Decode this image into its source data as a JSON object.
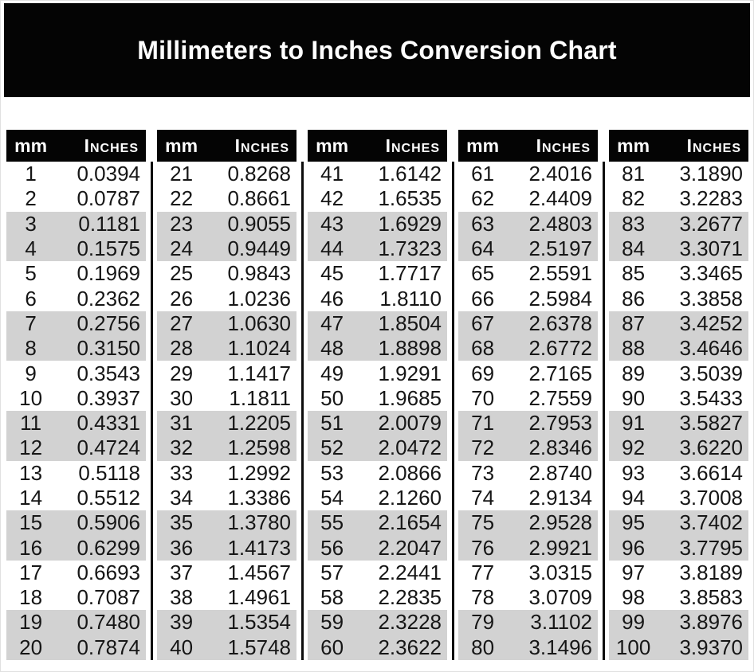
{
  "page": {
    "title": "Millimeters to Inches Conversion Chart"
  },
  "table_header": {
    "mm_label": "mm",
    "inches_label": "Inches"
  },
  "colors": {
    "banner_bg": "#040404",
    "header_bar_bg": "#040404",
    "header_text": "#ffffff",
    "alt_row_bg": "#d2d2d2",
    "separator": "#0d0d0d",
    "body_text": "#161616",
    "page_bg": "#ffffff"
  },
  "chart_data": {
    "type": "table",
    "title": "Millimeters to Inches Conversion Chart",
    "columns": [
      "mm",
      "Inches"
    ],
    "row_shading_pattern": "alternating pairs: rows 1-2 white, rows 3-4 gray, repeating",
    "tables": [
      {
        "mm_range": "1-20",
        "rows": [
          [
            1,
            "0.0394"
          ],
          [
            2,
            "0.0787"
          ],
          [
            3,
            "0.1181"
          ],
          [
            4,
            "0.1575"
          ],
          [
            5,
            "0.1969"
          ],
          [
            6,
            "0.2362"
          ],
          [
            7,
            "0.2756"
          ],
          [
            8,
            "0.3150"
          ],
          [
            9,
            "0.3543"
          ],
          [
            10,
            "0.3937"
          ],
          [
            11,
            "0.4331"
          ],
          [
            12,
            "0.4724"
          ],
          [
            13,
            "0.5118"
          ],
          [
            14,
            "0.5512"
          ],
          [
            15,
            "0.5906"
          ],
          [
            16,
            "0.6299"
          ],
          [
            17,
            "0.6693"
          ],
          [
            18,
            "0.7087"
          ],
          [
            19,
            "0.7480"
          ],
          [
            20,
            "0.7874"
          ]
        ]
      },
      {
        "mm_range": "21-40",
        "rows": [
          [
            21,
            "0.8268"
          ],
          [
            22,
            "0.8661"
          ],
          [
            23,
            "0.9055"
          ],
          [
            24,
            "0.9449"
          ],
          [
            25,
            "0.9843"
          ],
          [
            26,
            "1.0236"
          ],
          [
            27,
            "1.0630"
          ],
          [
            28,
            "1.1024"
          ],
          [
            29,
            "1.1417"
          ],
          [
            30,
            "1.1811"
          ],
          [
            31,
            "1.2205"
          ],
          [
            32,
            "1.2598"
          ],
          [
            33,
            "1.2992"
          ],
          [
            34,
            "1.3386"
          ],
          [
            35,
            "1.3780"
          ],
          [
            36,
            "1.4173"
          ],
          [
            37,
            "1.4567"
          ],
          [
            38,
            "1.4961"
          ],
          [
            39,
            "1.5354"
          ],
          [
            40,
            "1.5748"
          ]
        ]
      },
      {
        "mm_range": "41-60",
        "rows": [
          [
            41,
            "1.6142"
          ],
          [
            42,
            "1.6535"
          ],
          [
            43,
            "1.6929"
          ],
          [
            44,
            "1.7323"
          ],
          [
            45,
            "1.7717"
          ],
          [
            46,
            "1.8110"
          ],
          [
            47,
            "1.8504"
          ],
          [
            48,
            "1.8898"
          ],
          [
            49,
            "1.9291"
          ],
          [
            50,
            "1.9685"
          ],
          [
            51,
            "2.0079"
          ],
          [
            52,
            "2.0472"
          ],
          [
            53,
            "2.0866"
          ],
          [
            54,
            "2.1260"
          ],
          [
            55,
            "2.1654"
          ],
          [
            56,
            "2.2047"
          ],
          [
            57,
            "2.2441"
          ],
          [
            58,
            "2.2835"
          ],
          [
            59,
            "2.3228"
          ],
          [
            60,
            "2.3622"
          ]
        ]
      },
      {
        "mm_range": "61-80",
        "rows": [
          [
            61,
            "2.4016"
          ],
          [
            62,
            "2.4409"
          ],
          [
            63,
            "2.4803"
          ],
          [
            64,
            "2.5197"
          ],
          [
            65,
            "2.5591"
          ],
          [
            66,
            "2.5984"
          ],
          [
            67,
            "2.6378"
          ],
          [
            68,
            "2.6772"
          ],
          [
            69,
            "2.7165"
          ],
          [
            70,
            "2.7559"
          ],
          [
            71,
            "2.7953"
          ],
          [
            72,
            "2.8346"
          ],
          [
            73,
            "2.8740"
          ],
          [
            74,
            "2.9134"
          ],
          [
            75,
            "2.9528"
          ],
          [
            76,
            "2.9921"
          ],
          [
            77,
            "3.0315"
          ],
          [
            78,
            "3.0709"
          ],
          [
            79,
            "3.1102"
          ],
          [
            80,
            "3.1496"
          ]
        ]
      },
      {
        "mm_range": "81-100",
        "rows": [
          [
            81,
            "3.1890"
          ],
          [
            82,
            "3.2283"
          ],
          [
            83,
            "3.2677"
          ],
          [
            84,
            "3.3071"
          ],
          [
            85,
            "3.3465"
          ],
          [
            86,
            "3.3858"
          ],
          [
            87,
            "3.4252"
          ],
          [
            88,
            "3.4646"
          ],
          [
            89,
            "3.5039"
          ],
          [
            90,
            "3.5433"
          ],
          [
            91,
            "3.5827"
          ],
          [
            92,
            "3.6220"
          ],
          [
            93,
            "3.6614"
          ],
          [
            94,
            "3.7008"
          ],
          [
            95,
            "3.7402"
          ],
          [
            96,
            "3.7795"
          ],
          [
            97,
            "3.8189"
          ],
          [
            98,
            "3.8583"
          ],
          [
            99,
            "3.8976"
          ],
          [
            100,
            "3.9370"
          ]
        ]
      }
    ]
  }
}
